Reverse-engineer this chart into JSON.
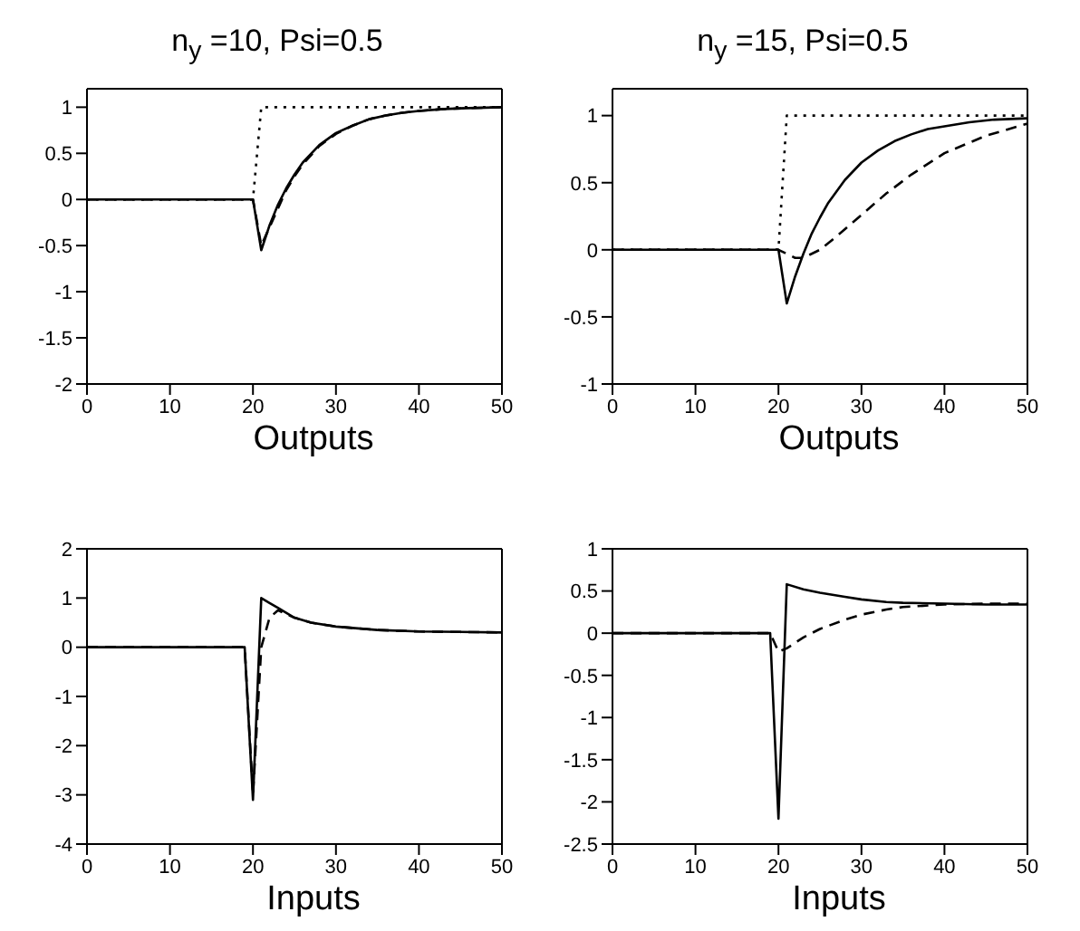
{
  "chart_data": [
    {
      "type": "line",
      "title": "n$_{y}$ =10, Psi=0.5",
      "xlabel": "Outputs",
      "xlim": [
        0,
        50
      ],
      "xticks": [
        0,
        10,
        20,
        30,
        40,
        50
      ],
      "ylim": [
        -2,
        1.2
      ],
      "yticks": [
        -2,
        -1.5,
        -1,
        -0.5,
        0,
        0.5,
        1
      ],
      "series": [
        {
          "color": "#000000",
          "line_style": "dotted",
          "x": [
            0,
            20,
            21,
            50
          ],
          "values": [
            0,
            0,
            1,
            1
          ]
        },
        {
          "color": "#000000",
          "line_style": "dashed",
          "x": [
            0,
            20,
            21,
            22,
            23,
            24,
            25,
            26,
            28,
            30,
            32,
            34,
            36,
            38,
            40,
            43,
            46,
            50
          ],
          "values": [
            0,
            0,
            -0.5,
            -0.3,
            -0.1,
            0.1,
            0.25,
            0.38,
            0.58,
            0.71,
            0.8,
            0.87,
            0.91,
            0.94,
            0.96,
            0.98,
            0.99,
            1
          ]
        },
        {
          "color": "#000000",
          "line_style": "solid",
          "x": [
            0,
            20,
            21,
            22,
            23,
            24,
            25,
            26,
            28,
            30,
            32,
            34,
            36,
            38,
            40,
            43,
            46,
            50
          ],
          "values": [
            0,
            0,
            -0.55,
            -0.28,
            -0.06,
            0.12,
            0.27,
            0.4,
            0.59,
            0.72,
            0.8,
            0.87,
            0.91,
            0.94,
            0.96,
            0.98,
            0.99,
            1
          ]
        }
      ]
    },
    {
      "type": "line",
      "title": "n$_{y}$ =15, Psi=0.5",
      "xlabel": "Outputs",
      "xlim": [
        0,
        50
      ],
      "xticks": [
        0,
        10,
        20,
        30,
        40,
        50
      ],
      "ylim": [
        -1,
        1.2
      ],
      "yticks": [
        -1,
        -0.5,
        0,
        0.5,
        1
      ],
      "series": [
        {
          "color": "#000000",
          "line_style": "dotted",
          "x": [
            0,
            20,
            21,
            50
          ],
          "values": [
            0,
            0,
            1,
            1
          ]
        },
        {
          "color": "#000000",
          "line_style": "dashed",
          "x": [
            0,
            20,
            21,
            22,
            23,
            25,
            27,
            30,
            33,
            36,
            40,
            45,
            50
          ],
          "values": [
            0,
            0,
            -0.03,
            -0.06,
            -0.06,
            0,
            0.1,
            0.26,
            0.42,
            0.56,
            0.72,
            0.85,
            0.94
          ]
        },
        {
          "color": "#000000",
          "line_style": "solid",
          "x": [
            0,
            20,
            21,
            22,
            23,
            24,
            25,
            26,
            28,
            30,
            32,
            34,
            36,
            38,
            40,
            43,
            46,
            50
          ],
          "values": [
            0,
            0,
            -0.4,
            -0.2,
            -0.03,
            0.12,
            0.24,
            0.35,
            0.52,
            0.65,
            0.74,
            0.81,
            0.86,
            0.9,
            0.92,
            0.95,
            0.97,
            0.98
          ]
        }
      ]
    },
    {
      "type": "line",
      "xlabel": "Inputs",
      "xlim": [
        0,
        50
      ],
      "xticks": [
        0,
        10,
        20,
        30,
        40,
        50
      ],
      "ylim": [
        -4,
        2
      ],
      "yticks": [
        -4,
        -3,
        -2,
        -1,
        0,
        1,
        2
      ],
      "series": [
        {
          "color": "#000000",
          "line_style": "dashed",
          "x": [
            0,
            19,
            20,
            21,
            22,
            23,
            25,
            27,
            30,
            35,
            40,
            45,
            50
          ],
          "values": [
            0,
            0,
            -3,
            0,
            0.6,
            0.75,
            0.6,
            0.5,
            0.42,
            0.35,
            0.32,
            0.31,
            0.3
          ]
        },
        {
          "color": "#000000",
          "line_style": "solid",
          "x": [
            0,
            19,
            20,
            21,
            22,
            23,
            25,
            27,
            30,
            35,
            40,
            45,
            50
          ],
          "values": [
            0,
            0,
            -3.1,
            1,
            0.9,
            0.8,
            0.6,
            0.5,
            0.42,
            0.35,
            0.32,
            0.31,
            0.3
          ]
        }
      ]
    },
    {
      "type": "line",
      "xlabel": "Inputs",
      "xlim": [
        0,
        50
      ],
      "xticks": [
        0,
        10,
        20,
        30,
        40,
        50
      ],
      "ylim": [
        -2.5,
        1
      ],
      "yticks": [
        -2.5,
        -2,
        -1.5,
        -1,
        -0.5,
        0,
        0.5,
        1
      ],
      "series": [
        {
          "color": "#000000",
          "line_style": "dashed",
          "x": [
            0,
            19,
            20,
            21,
            23,
            25,
            28,
            30,
            33,
            35,
            40,
            45,
            50
          ],
          "values": [
            0,
            0,
            -0.22,
            -0.18,
            -0.05,
            0.05,
            0.16,
            0.22,
            0.28,
            0.31,
            0.34,
            0.35,
            0.35
          ]
        },
        {
          "color": "#000000",
          "line_style": "solid",
          "x": [
            0,
            19,
            20,
            21,
            23,
            25,
            28,
            30,
            33,
            35,
            40,
            45,
            50
          ],
          "values": [
            0,
            0,
            -2.2,
            0.58,
            0.52,
            0.48,
            0.43,
            0.4,
            0.37,
            0.36,
            0.35,
            0.34,
            0.34
          ]
        }
      ]
    }
  ]
}
